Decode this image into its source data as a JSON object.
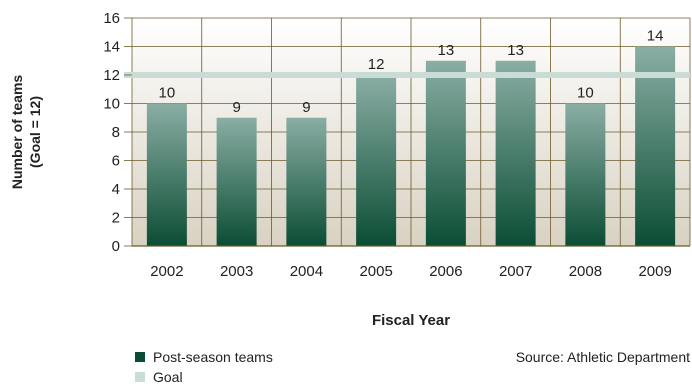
{
  "chart_data": {
    "type": "bar",
    "categories": [
      "2002",
      "2003",
      "2004",
      "2005",
      "2006",
      "2007",
      "2008",
      "2009"
    ],
    "series": [
      {
        "name": "Post-season teams",
        "values": [
          10,
          9,
          9,
          12,
          13,
          13,
          10,
          14
        ]
      }
    ],
    "goal": {
      "name": "Goal",
      "value": 12
    },
    "xlabel": "Fiscal Year",
    "ylabel_line1": "Number of teams",
    "ylabel_line2": "(Goal = 12)",
    "ylim": [
      0,
      16
    ],
    "yticks": [
      0,
      2,
      4,
      6,
      8,
      10,
      12,
      14,
      16
    ],
    "grid": true,
    "colors": {
      "bar_top": "#8aaea4",
      "bar_bottom": "#0b4d34",
      "goal_line": "#c9ddd6",
      "grid": "#6b5a2a",
      "plot_bg_top": "#ffffff",
      "plot_bg_bottom": "#d9d2c2"
    }
  },
  "legend": {
    "series_label": "Post-season teams",
    "goal_label": "Goal",
    "series_color": "#0b4d34",
    "goal_color": "#c9ddd6"
  },
  "source": "Source: Athletic Department"
}
